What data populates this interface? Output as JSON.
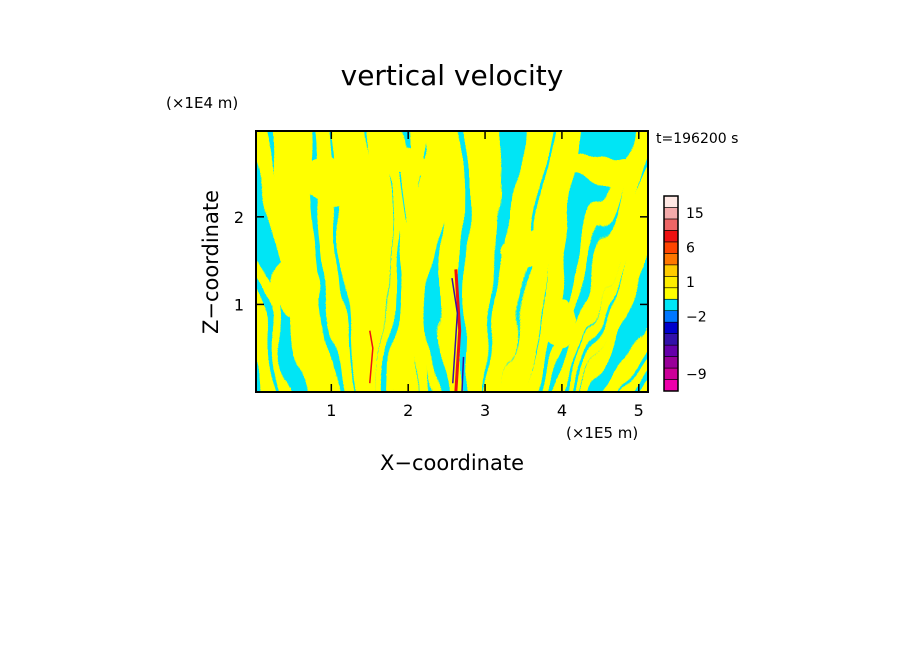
{
  "chart_data": {
    "type": "heatmap",
    "title": "vertical velocity",
    "xlabel": "X−coordinate",
    "ylabel": "Z−coordinate",
    "x_unit": "(×1E5 m)",
    "y_unit": "(×1E4 m)",
    "time_label": "t=196200 s",
    "xlim": [
      0.02,
      5.12
    ],
    "ylim": [
      0.0,
      2.98
    ],
    "x_ticks": [
      1,
      2,
      3,
      4,
      5
    ],
    "y_ticks": [
      1,
      2
    ],
    "x_tick_labels": [
      "1",
      "2",
      "3",
      "4",
      "5"
    ],
    "y_tick_labels": [
      "1",
      "2"
    ],
    "grid": false,
    "field_colors": {
      "negative": "#00e5f5",
      "positive": "#ffff00",
      "strong_positive": "#ee1111",
      "strong_negative": "#3311aa"
    },
    "colorbar": {
      "position": "right",
      "levels": [
        {
          "color": "#ee00aa"
        },
        {
          "color": "#cc0099"
        },
        {
          "color": "#990099"
        },
        {
          "color": "#6600aa"
        },
        {
          "color": "#3311aa"
        },
        {
          "color": "#0000cc"
        },
        {
          "color": "#0077ff"
        },
        {
          "color": "#00e5f5"
        },
        {
          "color": "#ffff00"
        },
        {
          "color": "#ffee00"
        },
        {
          "color": "#ffcc00"
        },
        {
          "color": "#ff7700"
        },
        {
          "color": "#ff4400"
        },
        {
          "color": "#ee1111"
        },
        {
          "color": "#ee6666"
        },
        {
          "color": "#f4aaaa"
        },
        {
          "color": "#ffe8e4"
        }
      ],
      "tick_labels": [
        {
          "label": "15",
          "level_index": 15
        },
        {
          "label": "6",
          "level_index": 12
        },
        {
          "label": "1",
          "level_index": 9
        },
        {
          "label": "−2",
          "level_index": 6
        },
        {
          "label": "−9",
          "level_index": 1
        }
      ]
    }
  }
}
